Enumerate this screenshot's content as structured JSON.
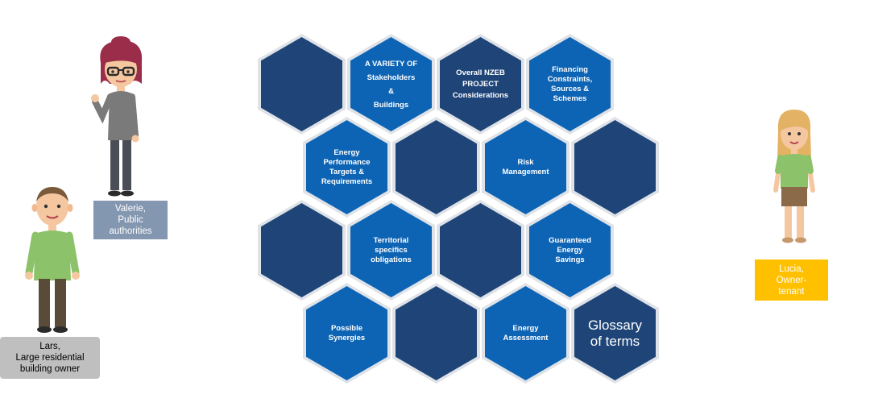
{
  "hexagons": {
    "r1c0": {
      "label": ""
    },
    "r1c1": {
      "label": "A VARIETY OF\nStakeholders\n&\nBuildings"
    },
    "r1c2": {
      "label": "Overall NZEB\nPROJECT\nConsiderations"
    },
    "r1c3": {
      "label": "Financing\nConstraints,\nSources &\nSchemes"
    },
    "r2c0": {
      "label": "Energy\nPerformance\nTargets &\nRequirements"
    },
    "r2c1": {
      "label": ""
    },
    "r2c2": {
      "label": "Risk\nManagement"
    },
    "r2c3": {
      "label": ""
    },
    "r3c0": {
      "label": ""
    },
    "r3c1": {
      "label": "Territorial\nspecifics\nobligations"
    },
    "r3c2": {
      "label": ""
    },
    "r3c3": {
      "label": "Guaranteed\nEnergy\nSavings"
    },
    "r4c0": {
      "label": "Possible\nSynergies"
    },
    "r4c1": {
      "label": ""
    },
    "r4c2": {
      "label": "Energy\nAssessment"
    },
    "r4c3": {
      "label": "Glossary\nof terms"
    }
  },
  "personas": {
    "valerie": {
      "label": "Valerie,\nPublic\nauthorities",
      "color": "#8497b0"
    },
    "lars": {
      "label": "Lars,\nLarge residential\nbuilding owner",
      "color": "#bfbfbf"
    },
    "lucia": {
      "label": "Lucia,\nOwner-\ntenant",
      "color": "#ffc000"
    }
  },
  "colors": {
    "dark_hex": "#1f4578",
    "bright_hex": "#0e64b4",
    "hex_border": "#dfe3e8"
  }
}
